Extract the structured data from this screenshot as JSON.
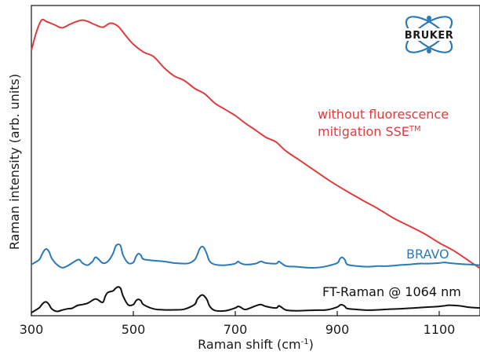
{
  "chart_data": {
    "type": "line",
    "xlabel": "Raman shift (cm",
    "xlabel_sup": "-1",
    "xlabel_tail": ")",
    "ylabel": "Raman intensity (arb. units)",
    "xlim": [
      300,
      1180
    ],
    "ylim": [
      0,
      100
    ],
    "x_ticks": [
      300,
      500,
      700,
      900,
      1100
    ],
    "y_ticks_labeled": false,
    "grid": false,
    "series": [
      {
        "name": "without fluorescence mitigation SSE",
        "color": "#e03c3c",
        "x": [
          300,
          310,
          320,
          330,
          345,
          360,
          375,
          390,
          400,
          410,
          425,
          440,
          455,
          470,
          485,
          500,
          520,
          540,
          560,
          580,
          600,
          620,
          640,
          660,
          680,
          700,
          720,
          740,
          760,
          780,
          800,
          830,
          860,
          890,
          920,
          950,
          980,
          1010,
          1040,
          1070,
          1100,
          1130,
          1160,
          1180
        ],
        "y": [
          85.5,
          91.5,
          95.3,
          94.8,
          93.8,
          92.8,
          93.9,
          94.9,
          95.3,
          94.9,
          93.8,
          93.0,
          94.3,
          93.3,
          90.3,
          87.5,
          85.0,
          83.5,
          80.0,
          77.3,
          75.8,
          73.3,
          71.5,
          68.5,
          66.5,
          64.5,
          62.0,
          59.8,
          57.5,
          56.0,
          53.0,
          49.7,
          46.3,
          43.0,
          40.0,
          37.2,
          34.5,
          31.5,
          29.0,
          26.5,
          23.5,
          20.8,
          17.5,
          15.3
        ]
      },
      {
        "name": "BRAVO",
        "color": "#2a7ab8",
        "x": [
          300,
          315,
          320,
          325,
          330,
          335,
          340,
          350,
          360,
          370,
          380,
          390,
          395,
          400,
          410,
          420,
          425,
          430,
          440,
          450,
          460,
          465,
          470,
          475,
          480,
          490,
          500,
          505,
          510,
          515,
          520,
          540,
          560,
          580,
          600,
          610,
          620,
          625,
          630,
          635,
          640,
          645,
          650,
          660,
          680,
          700,
          705,
          710,
          720,
          740,
          750,
          760,
          780,
          785,
          790,
          800,
          820,
          840,
          860,
          880,
          900,
          905,
          910,
          915,
          920,
          940,
          960,
          980,
          1000,
          1020,
          1040,
          1060,
          1080,
          1100,
          1110,
          1120,
          1140,
          1160,
          1180
        ],
        "y": [
          16.5,
          18.0,
          19.5,
          21.0,
          21.5,
          20.5,
          18.5,
          16.5,
          15.5,
          16.0,
          17.0,
          18.0,
          18.0,
          17.0,
          16.3,
          17.5,
          18.8,
          18.5,
          17.0,
          17.5,
          20.0,
          22.3,
          23.0,
          22.5,
          19.5,
          17.0,
          17.2,
          19.0,
          20.0,
          19.5,
          18.2,
          17.8,
          17.5,
          17.0,
          16.8,
          17.0,
          18.0,
          19.5,
          21.5,
          22.3,
          21.5,
          19.5,
          17.5,
          16.5,
          16.3,
          16.8,
          17.5,
          17.0,
          16.5,
          16.8,
          17.5,
          17.0,
          16.8,
          17.5,
          17.0,
          16.0,
          15.8,
          15.5,
          15.5,
          16.0,
          17.0,
          18.3,
          18.8,
          18.0,
          16.5,
          16.0,
          15.8,
          16.0,
          16.0,
          16.3,
          16.5,
          16.8,
          16.8,
          17.0,
          17.2,
          17.0,
          16.7,
          16.5,
          16.3
        ]
      },
      {
        "name": "FT-Raman @ 1064 nm",
        "color": "#111111",
        "x": [
          300,
          315,
          320,
          325,
          330,
          335,
          340,
          350,
          360,
          370,
          380,
          390,
          400,
          410,
          420,
          425,
          430,
          440,
          445,
          450,
          460,
          465,
          470,
          475,
          480,
          490,
          500,
          505,
          510,
          515,
          520,
          540,
          560,
          580,
          600,
          620,
          625,
          630,
          635,
          640,
          645,
          650,
          660,
          680,
          700,
          705,
          710,
          720,
          740,
          750,
          760,
          780,
          785,
          790,
          800,
          820,
          840,
          860,
          880,
          900,
          905,
          910,
          915,
          920,
          940,
          960,
          980,
          1000,
          1020,
          1040,
          1060,
          1080,
          1100,
          1110,
          1120,
          1140,
          1160,
          1180
        ],
        "y": [
          1.0,
          2.5,
          3.5,
          4.3,
          4.4,
          3.5,
          2.2,
          1.4,
          1.8,
          2.2,
          2.4,
          3.3,
          3.6,
          4.0,
          5.0,
          5.4,
          5.2,
          4.3,
          6.3,
          7.5,
          8.0,
          8.8,
          9.3,
          8.8,
          6.3,
          3.5,
          3.6,
          4.8,
          5.3,
          4.8,
          3.6,
          2.2,
          1.9,
          1.9,
          2.1,
          3.6,
          5.2,
          6.2,
          6.7,
          6.2,
          5.0,
          3.0,
          1.7,
          1.6,
          2.5,
          3.0,
          2.8,
          2.0,
          3.2,
          3.6,
          3.0,
          2.5,
          3.2,
          2.8,
          1.8,
          1.6,
          1.7,
          1.8,
          1.9,
          2.8,
          3.4,
          3.5,
          3.0,
          2.3,
          2.0,
          1.8,
          1.9,
          2.1,
          2.2,
          2.4,
          2.6,
          2.8,
          3.0,
          3.2,
          3.4,
          3.2,
          2.7,
          2.5
        ]
      }
    ],
    "annotations": {
      "red_line1": "without fluorescence",
      "red_line2": "mitigation SSE",
      "red_sup": "TM",
      "blue": "BRAVO",
      "black": "FT-Raman @ 1064 nm"
    }
  },
  "logo": {
    "text": "BRUKER",
    "colors": {
      "ring": "#2a7ab8",
      "dot": "#2a7ab8"
    }
  }
}
